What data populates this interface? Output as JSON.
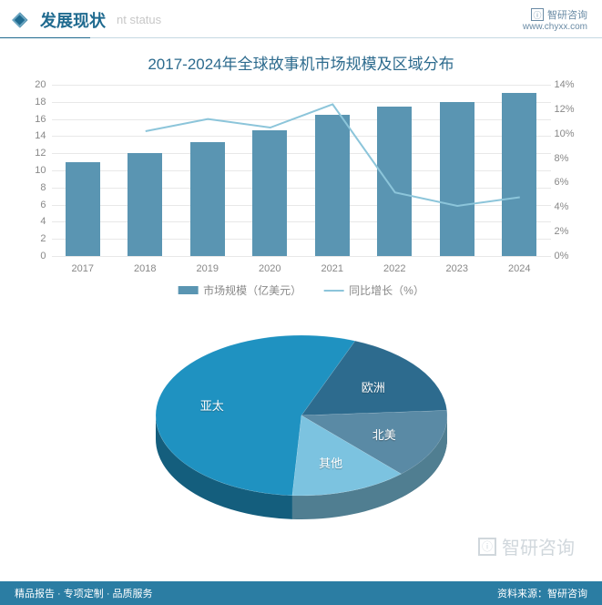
{
  "header": {
    "title_cn": "发展现状",
    "title_en": "nt status",
    "logo_text": "智研咨询",
    "url": "www.chyxx.com"
  },
  "chart": {
    "type": "combo-bar-line",
    "title": "2017-2024年全球故事机市场规模及区域分布",
    "title_color": "#2d6b8e",
    "title_fontsize": 17,
    "background_color": "#ffffff",
    "grid_color": "#e8e8e8",
    "categories": [
      "2017",
      "2018",
      "2019",
      "2020",
      "2021",
      "2022",
      "2023",
      "2024"
    ],
    "bar_series": {
      "label": "市场规模（亿美元）",
      "color": "#5a95b2",
      "values": [
        11,
        12,
        13.3,
        14.7,
        16.5,
        17.4,
        18,
        19
      ],
      "y_axis": {
        "min": 0,
        "max": 20,
        "step": 2,
        "side": "left"
      }
    },
    "line_series": {
      "label": "同比增长（%）",
      "color": "#8cc5da",
      "values": [
        null,
        10.2,
        11.2,
        10.5,
        12.4,
        5.2,
        4.1,
        4.8
      ],
      "y_axis": {
        "min": 0,
        "max": 14,
        "step": 2,
        "side": "right",
        "suffix": "%"
      }
    },
    "label_fontsize": 11,
    "label_color": "#888888",
    "bar_width_ratio": 0.55,
    "line_width": 2
  },
  "pie": {
    "type": "pie-3d",
    "slices": [
      {
        "label": "亚太",
        "value": 55,
        "color": "#1f92c1"
      },
      {
        "label": "欧洲",
        "value": 18,
        "color": "#2d6b8e"
      },
      {
        "label": "北美",
        "value": 14,
        "color": "#5a8aa5"
      },
      {
        "label": "其他",
        "value": 13,
        "color": "#7cc3e0"
      }
    ],
    "label_color": "#ffffff",
    "label_fontsize": 13
  },
  "watermark": {
    "text": "智研咨询"
  },
  "footer": {
    "left": "精品报告 · 专项定制 · 品质服务",
    "right": "资料来源：智研咨询"
  }
}
